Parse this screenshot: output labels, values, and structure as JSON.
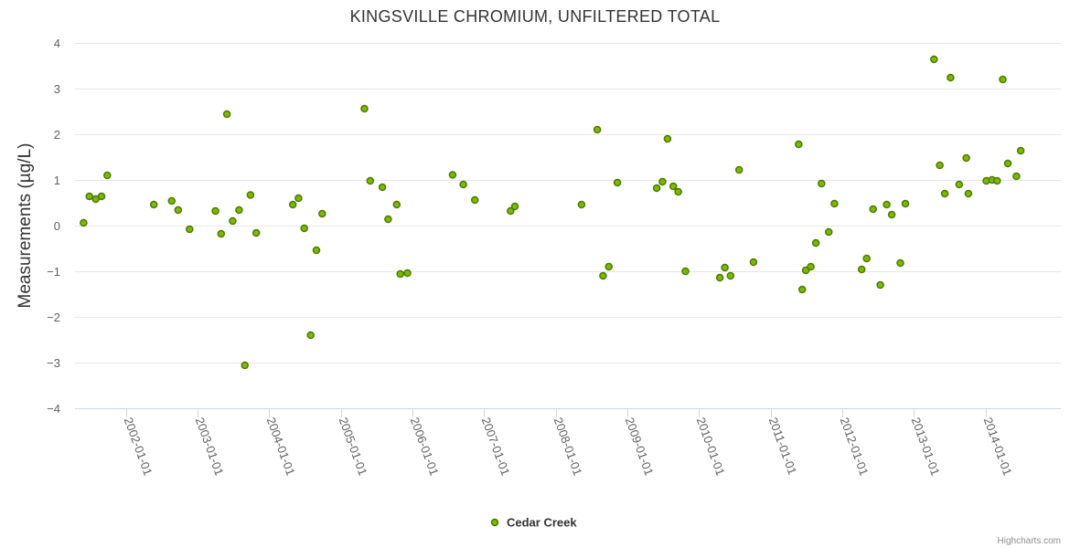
{
  "chart_data": {
    "type": "scatter",
    "title": "KINGSVILLE CHROMIUM, UNFILTERED TOTAL",
    "xlabel": "",
    "ylabel": "Measurements (µg/L)",
    "ylim": [
      -4,
      4
    ],
    "yticks": [
      4,
      3,
      2,
      1,
      0,
      -1,
      -2,
      -3,
      -4
    ],
    "ytick_labels": [
      "4",
      "3",
      "2",
      "1",
      "0",
      "−1",
      "−2",
      "−3",
      "−4"
    ],
    "xlim": [
      2001.29,
      2015.05
    ],
    "xticks": [
      2002,
      2003,
      2004,
      2005,
      2006,
      2007,
      2008,
      2009,
      2010,
      2011,
      2012,
      2013,
      2014
    ],
    "xtick_labels": [
      "2002-01-01",
      "2003-01-01",
      "2004-01-01",
      "2005-01-01",
      "2006-01-01",
      "2007-01-01",
      "2008-01-01",
      "2009-01-01",
      "2010-01-01",
      "2011-01-01",
      "2012-01-01",
      "2013-01-01",
      "2014-01-01"
    ],
    "legend": "bottom-center",
    "colors": {
      "marker_fill": "#7fb800",
      "marker_stroke": "#4a7a00"
    },
    "series": [
      {
        "name": "Cedar Creek",
        "x": [
          2001.41,
          2001.49,
          2001.58,
          2001.66,
          2001.74,
          2002.39,
          2002.64,
          2002.73,
          2002.89,
          2003.25,
          2003.33,
          2003.41,
          2003.49,
          2003.58,
          2003.66,
          2003.74,
          2003.82,
          2004.33,
          2004.41,
          2004.49,
          2004.58,
          2004.66,
          2004.74,
          2005.33,
          2005.41,
          2005.58,
          2005.66,
          2005.78,
          2005.83,
          2005.93,
          2006.56,
          2006.71,
          2006.87,
          2007.37,
          2007.43,
          2008.36,
          2008.58,
          2008.66,
          2008.74,
          2008.86,
          2009.41,
          2009.49,
          2009.56,
          2009.64,
          2009.71,
          2009.81,
          2010.29,
          2010.36,
          2010.44,
          2010.56,
          2010.76,
          2011.39,
          2011.44,
          2011.49,
          2011.56,
          2011.63,
          2011.71,
          2011.81,
          2011.89,
          2012.27,
          2012.34,
          2012.43,
          2012.53,
          2012.62,
          2012.69,
          2012.81,
          2012.88,
          2013.28,
          2013.36,
          2013.43,
          2013.51,
          2013.63,
          2013.73,
          2013.76,
          2014.01,
          2014.09,
          2014.16,
          2014.24,
          2014.31,
          2014.43,
          2014.49
        ],
        "y": [
          0.06,
          0.64,
          0.58,
          0.64,
          1.1,
          0.46,
          0.54,
          0.34,
          -0.08,
          0.32,
          -0.18,
          2.44,
          0.1,
          0.34,
          -3.06,
          0.67,
          -0.16,
          0.46,
          0.6,
          -0.06,
          -2.4,
          -0.54,
          0.26,
          2.56,
          0.98,
          0.84,
          0.14,
          0.46,
          -1.06,
          -1.04,
          1.11,
          0.9,
          0.56,
          0.32,
          0.42,
          0.46,
          2.1,
          -1.1,
          -0.9,
          0.94,
          0.82,
          0.96,
          1.9,
          0.86,
          0.74,
          -1.0,
          -1.14,
          -0.92,
          -1.1,
          1.22,
          -0.8,
          1.78,
          -1.4,
          -0.98,
          -0.9,
          -0.38,
          0.92,
          -0.14,
          0.48,
          -0.96,
          -0.72,
          0.36,
          -1.3,
          0.46,
          0.24,
          -0.82,
          0.48,
          3.64,
          1.32,
          0.7,
          3.24,
          0.9,
          1.48,
          0.7,
          0.98,
          1.0,
          0.98,
          3.2,
          1.36,
          1.08,
          1.64
        ]
      }
    ]
  },
  "credits": "Highcharts.com"
}
